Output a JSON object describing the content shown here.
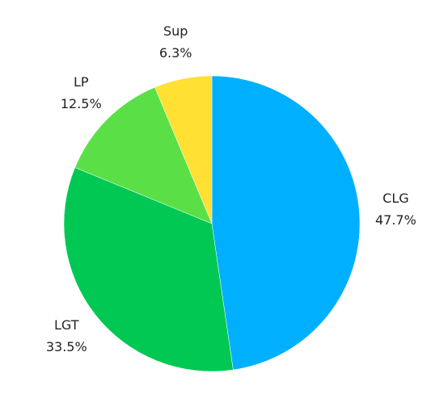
{
  "chart_data": {
    "type": "pie",
    "categories": [
      "CLG",
      "LGT",
      "LP",
      "Sup"
    ],
    "values": [
      47.7,
      33.5,
      12.5,
      6.3
    ],
    "value_labels": [
      "47.7%",
      "33.5%",
      "12.5%",
      "6.3%"
    ],
    "colors": [
      "#00b0ff",
      "#00c853",
      "#5ae046",
      "#ffe033"
    ]
  }
}
